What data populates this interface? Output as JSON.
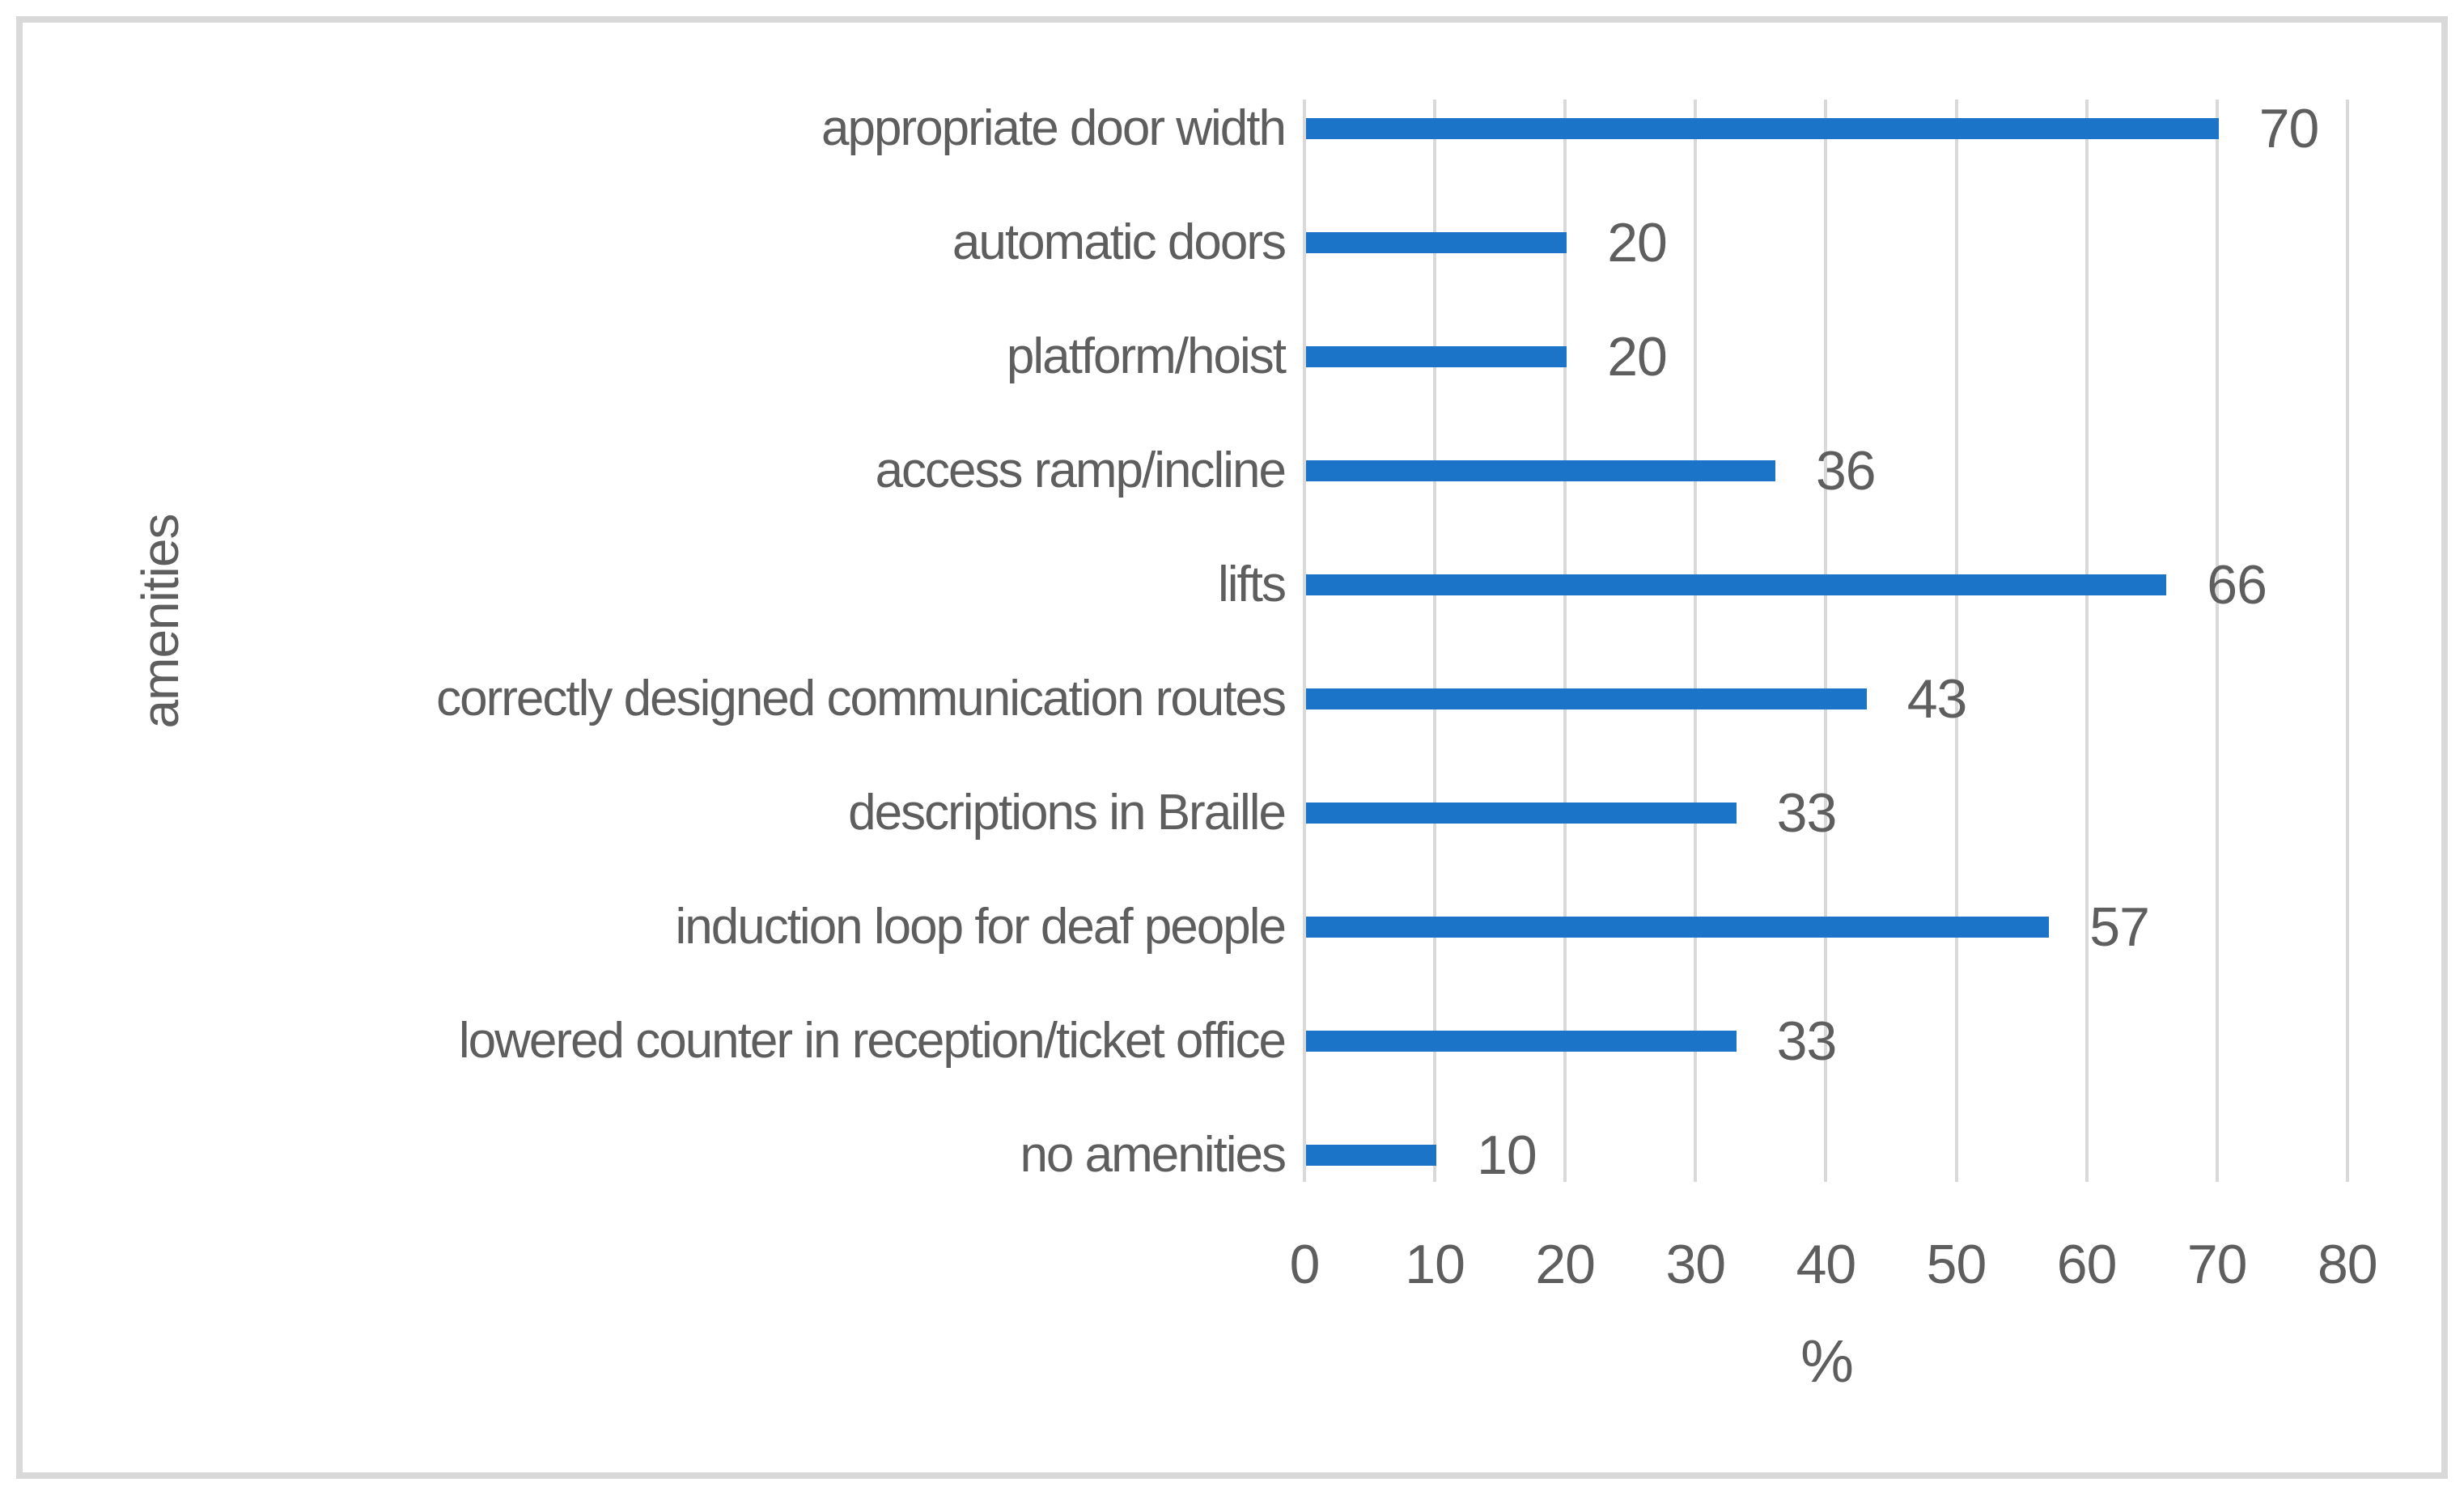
{
  "chart_data": {
    "type": "bar",
    "orientation": "horizontal",
    "title": "",
    "xlabel": "%",
    "ylabel": "amenities",
    "categories": [
      "appropriate door width",
      "automatic doors",
      "platform/hoist",
      "access ramp/incline",
      "lifts",
      "correctly designed communication routes",
      "descriptions in Braille",
      "induction loop for deaf people",
      "lowered counter in reception/ticket office",
      "no amenities"
    ],
    "values": [
      70,
      20,
      20,
      36,
      66,
      43,
      33,
      57,
      33,
      10
    ],
    "value_labels_shown": true,
    "xlim": [
      0,
      80
    ],
    "xticks": [
      "0",
      "10",
      "20",
      "30",
      "40",
      "50",
      "60",
      "70",
      "80"
    ],
    "grid": "vertical",
    "legend": "none",
    "colors": {
      "bar": "#1b74c8",
      "gridline": "#d9d9d9",
      "border": "#d9d9d9",
      "text": "#5e5e5e"
    }
  }
}
